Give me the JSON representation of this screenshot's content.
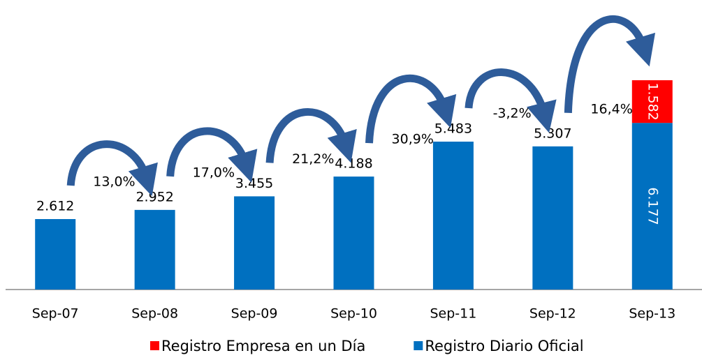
{
  "chart_data": {
    "type": "bar",
    "stacked": true,
    "categories": [
      "Sep-07",
      "Sep-08",
      "Sep-09",
      "Sep-10",
      "Sep-11",
      "Sep-12",
      "Sep-13"
    ],
    "series": [
      {
        "name": "Registro Diario Oficial",
        "color": "#0070c0",
        "values": [
          2612,
          2952,
          3455,
          4188,
          5483,
          5307,
          6177
        ],
        "value_labels": [
          "2.612",
          "2.952",
          "3.455",
          "4.188",
          "5.483",
          "5.307",
          "6.177"
        ]
      },
      {
        "name": "Registro Empresa en un Día",
        "color": "#ff0000",
        "values": [
          null,
          null,
          null,
          null,
          null,
          null,
          1582
        ],
        "value_labels": [
          null,
          null,
          null,
          null,
          null,
          null,
          "1.582"
        ]
      }
    ],
    "annotations": [
      "13,0%",
      "17,0%",
      "21,2%",
      "30,9%",
      "-3,2%",
      "16,4%"
    ],
    "arrow_color": "#2e5c9a",
    "legend": "bottom"
  }
}
